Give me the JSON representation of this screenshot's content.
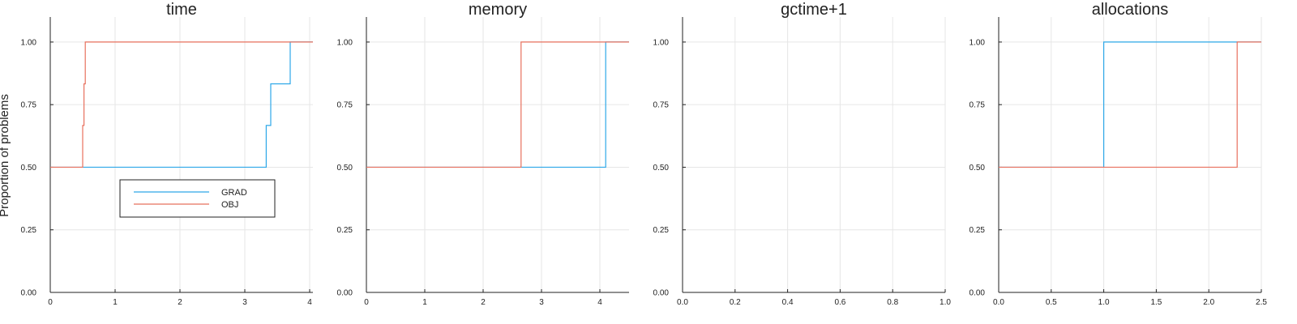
{
  "ylabel": "Proportion of problems",
  "colors": {
    "GRAD": "#2ea8e8",
    "OBJ": "#e8715e"
  },
  "chart_data": [
    {
      "type": "line",
      "step": true,
      "title": "time",
      "xlim": [
        0,
        4.05
      ],
      "ylim": [
        0,
        1.1
      ],
      "xticks": [
        0,
        1,
        2,
        3,
        4
      ],
      "xtick_labels": [
        "0",
        "1",
        "2",
        "3",
        "4"
      ],
      "yticks": [
        0,
        0.25,
        0.5,
        0.75,
        1.0
      ],
      "ytick_labels": [
        "0.00",
        "0.25",
        "0.50",
        "0.75",
        "1.00"
      ],
      "grid": true,
      "legend": {
        "position": "center-lower",
        "entries": [
          "GRAD",
          "OBJ"
        ]
      },
      "series": [
        {
          "name": "GRAD",
          "x": [
            0,
            3.33,
            3.33,
            3.4,
            3.4,
            3.7,
            3.7,
            4.05
          ],
          "y": [
            0.5,
            0.5,
            0.667,
            0.667,
            0.833,
            0.833,
            1.0,
            1.0
          ]
        },
        {
          "name": "OBJ",
          "x": [
            0,
            0.5,
            0.5,
            0.52,
            0.52,
            0.54,
            0.54,
            4.05
          ],
          "y": [
            0.5,
            0.5,
            0.667,
            0.667,
            0.833,
            0.833,
            1.0,
            1.0
          ]
        }
      ]
    },
    {
      "type": "line",
      "step": true,
      "title": "memory",
      "xlim": [
        0,
        4.5
      ],
      "ylim": [
        0,
        1.1
      ],
      "xticks": [
        0,
        1,
        2,
        3,
        4
      ],
      "xtick_labels": [
        "0",
        "1",
        "2",
        "3",
        "4"
      ],
      "yticks": [
        0,
        0.25,
        0.5,
        0.75,
        1.0
      ],
      "ytick_labels": [
        "0.00",
        "0.25",
        "0.50",
        "0.75",
        "1.00"
      ],
      "grid": true,
      "series": [
        {
          "name": "GRAD",
          "x": [
            0,
            4.1,
            4.1,
            4.5
          ],
          "y": [
            0.5,
            0.5,
            1.0,
            1.0
          ]
        },
        {
          "name": "OBJ",
          "x": [
            0,
            2.65,
            2.65,
            4.5
          ],
          "y": [
            0.5,
            0.5,
            1.0,
            1.0
          ]
        }
      ]
    },
    {
      "type": "line",
      "step": true,
      "title": "gctime+1",
      "xlim": [
        0,
        1.0
      ],
      "ylim": [
        0,
        1.1
      ],
      "xticks": [
        0,
        0.2,
        0.4,
        0.6,
        0.8,
        1.0
      ],
      "xtick_labels": [
        "0.0",
        "0.2",
        "0.4",
        "0.6",
        "0.8",
        "1.0"
      ],
      "yticks": [
        0,
        0.25,
        0.5,
        0.75,
        1.0
      ],
      "ytick_labels": [
        "0.00",
        "0.25",
        "0.50",
        "0.75",
        "1.00"
      ],
      "grid": true,
      "series": []
    },
    {
      "type": "line",
      "step": true,
      "title": "allocations",
      "xlim": [
        0,
        2.5
      ],
      "ylim": [
        0,
        1.1
      ],
      "xticks": [
        0,
        0.5,
        1.0,
        1.5,
        2.0,
        2.5
      ],
      "xtick_labels": [
        "0.0",
        "0.5",
        "1.0",
        "1.5",
        "2.0",
        "2.5"
      ],
      "yticks": [
        0,
        0.25,
        0.5,
        0.75,
        1.0
      ],
      "ytick_labels": [
        "0.00",
        "0.25",
        "0.50",
        "0.75",
        "1.00"
      ],
      "grid": true,
      "series": [
        {
          "name": "GRAD",
          "x": [
            0,
            1.0,
            1.0,
            2.5
          ],
          "y": [
            0.5,
            0.5,
            1.0,
            1.0
          ]
        },
        {
          "name": "OBJ",
          "x": [
            0,
            2.27,
            2.27,
            2.5
          ],
          "y": [
            0.5,
            0.5,
            1.0,
            1.0
          ]
        }
      ]
    }
  ]
}
